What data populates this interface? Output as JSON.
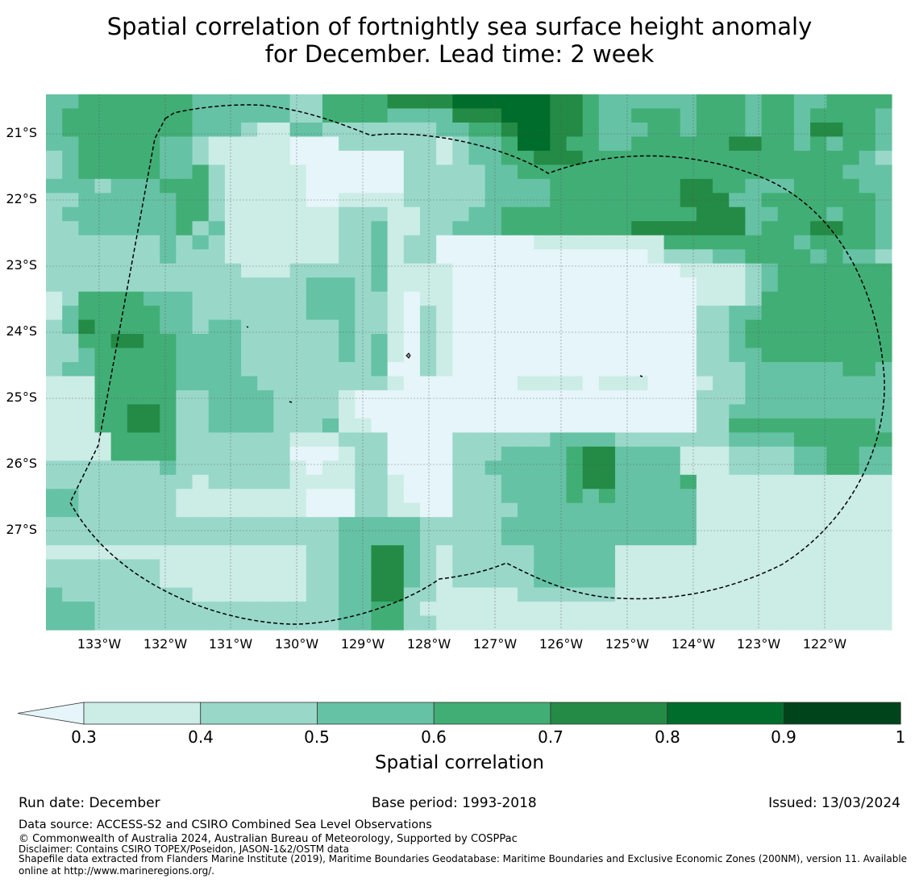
{
  "title": {
    "line1": "Spatial correlation of fortnightly sea surface height anomaly",
    "line2": "for December. Lead time: 2 week"
  },
  "map": {
    "lat_labels": [
      "21°S",
      "22°S",
      "23°S",
      "24°S",
      "25°S",
      "26°S",
      "27°S"
    ],
    "lon_labels": [
      "133°W",
      "132°W",
      "131°W",
      "130°W",
      "129°W",
      "128°W",
      "127°W",
      "126°W",
      "125°W",
      "124°W",
      "123°W",
      "122°W"
    ],
    "lon_extent": [
      -133.8,
      -121.0
    ],
    "lat_extent": [
      -20.45,
      -28.55
    ],
    "eez_boundary_style": "dashed black line",
    "grid_values": [
      "3344444443333332244445555666666554333333444344334444",
      "3444444443333332244443333555666554334443444344344443",
      "3444444443332113322222223344566554333443444344355443",
      "3344444332111110002222221233466544334444445544343443",
      "2344444332111110000000221233445554444444444444444432",
      "2344444334211111000000222223344444444444444444444333",
      "3332333444211111000000222223333444444445544333444433",
      "2233333344211111001111222223333444444445553344444443",
      "2333333344211111112221122233444444444444555334443443",
      "2233333342311111112231122333444444445555555344455443",
      "2222222323211111112231220000001111111144444444344443",
      "2222222322211111112231220000000000000122233444434332",
      "2222222222221112222231111000000000000001111234444444",
      "2222222222222222333231111000000000000000111234444444",
      "1244443332222222333221011000000000000000111244444444",
      "1344444332222222333221021000000000000000223344444444",
      "2354444332332222223221021000000000000000223444444444",
      "2244554433332222223231021000000000000000223444444444",
      "2234444433332222223231021000000000000000223344444444",
      "2334444433332222222230021000000000000000222333333443",
      "1114444433333222222221000000011110111000122333333333",
      "1114444422333322221000000000000000000000222333333333",
      "1114455422333322221000000000000000000000223333333333",
      "1114455422333322231100000000000000000000224444444443",
      "1111444422222221112220000222222333322222223333444444",
      "1111444422222220001220000222333345533331112222334433",
      "2222222322222221011220000223333345533331112222334433",
      "2222222221222221111221000222333345533334111111111111",
      "3322222211111111000221000222333343433333111111111111",
      "3322222211111111000221100222233333333333111111111111",
      "2222222222222222223333322222333333333333111111111111",
      "2222222222222222223333322222333333333333111111111111",
      "1111111111111111223355321222223333311111111111111111",
      "2222222111111111223355321222223333311111111111111111",
      "2222222111111111223355321222223333311111111111111111",
      "3222222221111111223355221111122222211111111111111111",
      "3332222222222222223344211111111111111111111111111111",
      "3332222222222222223344221111111111111111111111111111"
    ]
  },
  "colorbar": {
    "ticks": [
      "0.3",
      "0.4",
      "0.5",
      "0.6",
      "0.7",
      "0.8",
      "0.9",
      "1"
    ],
    "bins": [
      {
        "range": "<0.3",
        "color": "#e5f5f9"
      },
      {
        "range": "0.3-0.4",
        "color": "#ccece6"
      },
      {
        "range": "0.4-0.5",
        "color": "#99d8c9"
      },
      {
        "range": "0.5-0.6",
        "color": "#66c2a4"
      },
      {
        "range": "0.6-0.7",
        "color": "#41ae76"
      },
      {
        "range": "0.7-0.8",
        "color": "#238b45"
      },
      {
        "range": "0.8-0.9",
        "color": "#006d2c"
      },
      {
        "range": "0.9-1",
        "color": "#00441b"
      }
    ],
    "label": "Spatial correlation"
  },
  "footer": {
    "run_date": "Run date: December",
    "base_period": "Base period: 1993-2018",
    "issued": "Issued: 13/03/2024",
    "data_source": "Data source: ACCESS-S2 and CSIRO Combined Sea Level Observations",
    "copyright": "© Commonwealth of Australia 2024, Australian Bureau of Meteorology, Supported by COSPPac",
    "disclaimer": "Disclaimer: Contains CSIRO TOPEX/Poseidon, JASON-1&2/OSTM data",
    "shapefile": "Shapefile data extracted from Flanders Marine Institute (2019), Maritime Boundaries Geodatabase: Maritime Boundaries and Exclusive Economic Zones (200NM), version 11. Available online at http://www.marineregions.org/."
  }
}
